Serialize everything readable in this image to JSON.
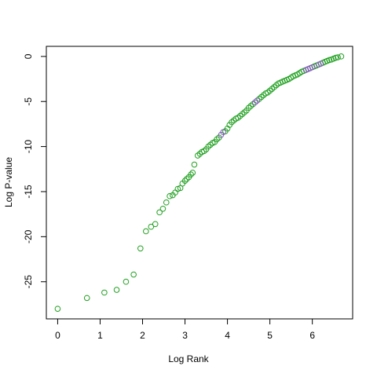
{
  "chart_data": {
    "type": "scatter",
    "x_label": "Log Rank",
    "y_label": "Log P-value",
    "series": [
      {
        "color": "#22a022",
        "x": [
          0,
          0.69,
          1.1,
          1.39,
          1.61,
          1.79,
          1.95,
          2.08,
          2.2,
          2.3,
          2.4,
          2.48,
          2.56,
          2.64,
          2.71,
          2.77,
          2.83,
          2.89,
          2.94,
          3.0,
          3.04,
          3.09,
          3.14,
          3.18,
          3.22,
          3.3,
          3.35,
          3.4,
          3.45,
          3.5,
          3.55,
          3.6,
          3.65,
          3.7,
          3.75,
          3.8,
          3.95,
          4.0,
          4.05,
          4.1,
          4.15,
          4.2,
          4.25,
          4.3,
          4.35,
          4.4,
          4.45,
          4.5,
          4.55,
          4.6,
          4.75,
          4.8,
          4.85,
          4.9,
          4.95,
          5.0,
          5.05,
          5.1,
          5.15,
          5.2,
          5.25,
          5.3,
          5.35,
          5.4,
          5.45,
          5.5,
          5.55,
          5.6,
          5.65,
          5.7,
          5.75,
          5.8,
          6.05,
          6.1,
          6.25,
          6.3,
          6.35,
          6.4,
          6.45,
          6.5,
          6.55,
          6.6,
          6.68
        ],
        "values": [
          -28,
          -26.8,
          -26.2,
          -25.9,
          -25.0,
          -24.2,
          -21.3,
          -19.4,
          -18.9,
          -18.6,
          -17.3,
          -16.9,
          -16.2,
          -15.5,
          -15.4,
          -15.1,
          -14.7,
          -14.6,
          -14.1,
          -13.8,
          -13.6,
          -13.4,
          -13.1,
          -12.9,
          -12.0,
          -11.0,
          -10.8,
          -10.6,
          -10.5,
          -10.3,
          -10.0,
          -9.8,
          -9.6,
          -9.5,
          -9.2,
          -9.0,
          -8.3,
          -8.0,
          -7.6,
          -7.3,
          -7.1,
          -6.9,
          -6.8,
          -6.6,
          -6.4,
          -6.2,
          -6.0,
          -5.7,
          -5.5,
          -5.3,
          -4.7,
          -4.5,
          -4.3,
          -4.1,
          -4.0,
          -3.8,
          -3.6,
          -3.4,
          -3.2,
          -3.0,
          -2.9,
          -2.8,
          -2.7,
          -2.6,
          -2.5,
          -2.35,
          -2.2,
          -2.1,
          -2.0,
          -1.85,
          -1.7,
          -1.6,
          -1.1,
          -1.0,
          -0.7,
          -0.6,
          -0.5,
          -0.4,
          -0.35,
          -0.25,
          -0.15,
          -0.1,
          0
        ]
      },
      {
        "color": "#7b5cb0",
        "x": [
          3.85,
          3.9,
          4.65,
          4.7,
          5.85,
          5.9,
          5.95,
          6.0,
          6.15,
          6.2
        ],
        "values": [
          -8.7,
          -8.4,
          -5.1,
          -4.9,
          -1.5,
          -1.4,
          -1.3,
          -1.2,
          -0.9,
          -0.8
        ]
      }
    ],
    "xlim": [
      -0.267,
      6.95
    ],
    "ylim": [
      -29.12,
      1.12
    ],
    "xticks": [
      0,
      1,
      2,
      3,
      4,
      5,
      6
    ],
    "yticks": [
      -25,
      -20,
      -15,
      -10,
      -5,
      0
    ]
  }
}
